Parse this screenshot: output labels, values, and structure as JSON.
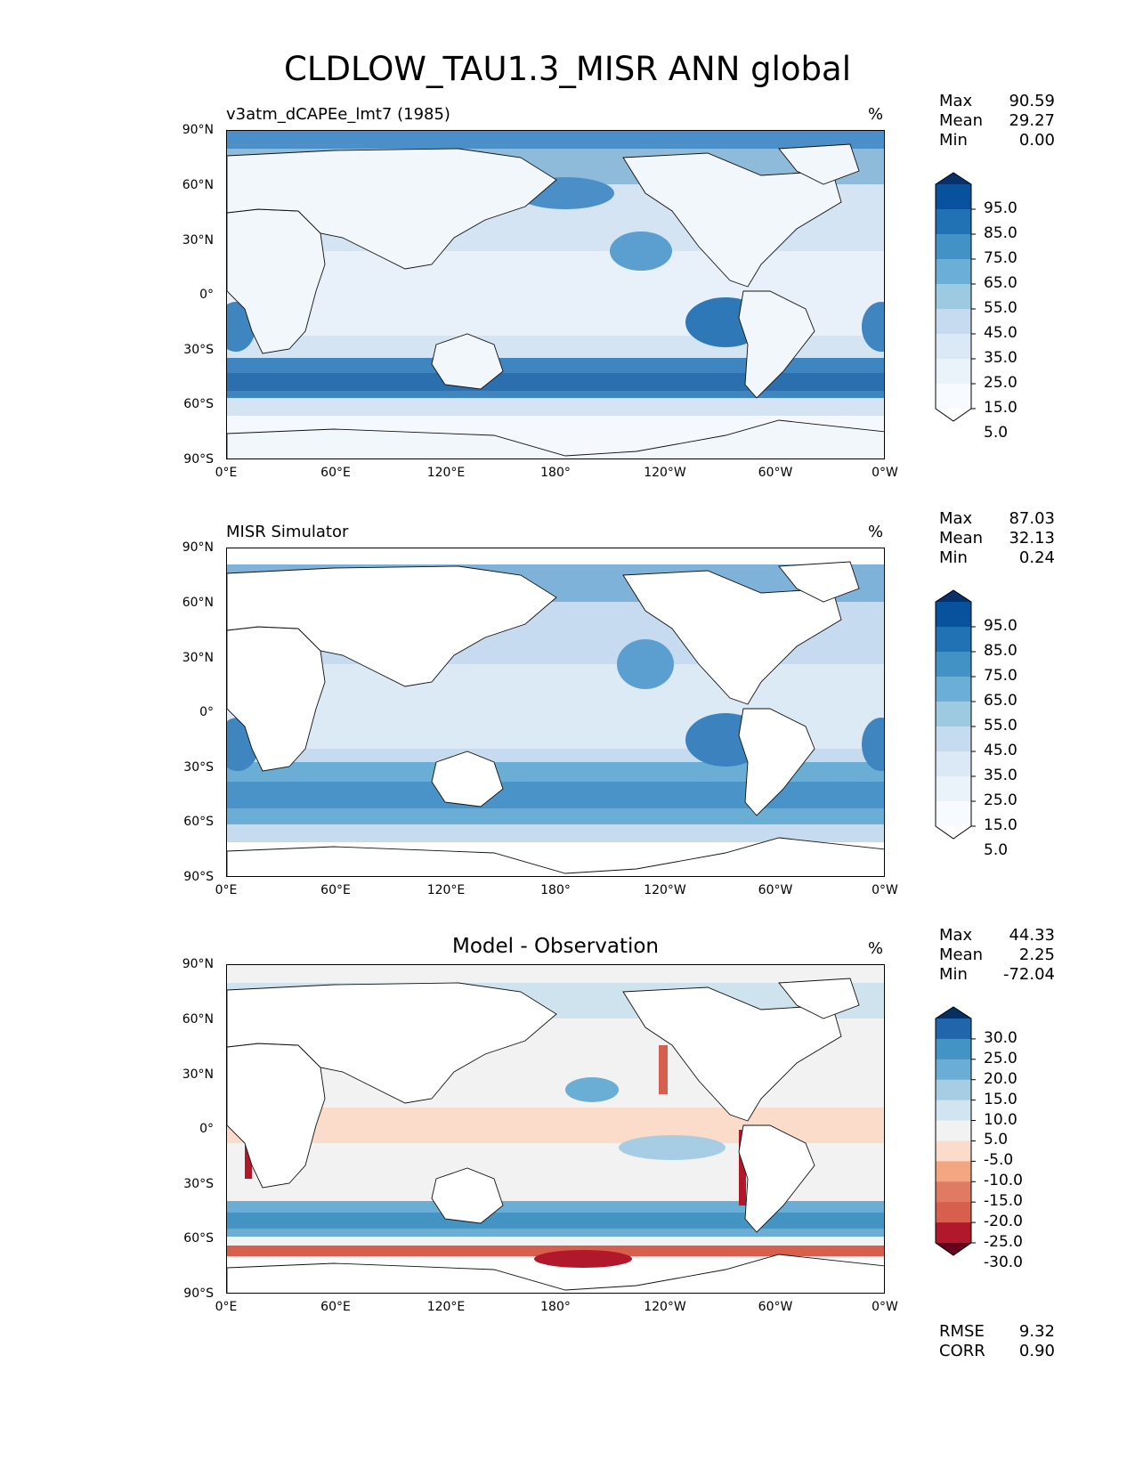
{
  "title": "CLDLOW_TAU1.3_MISR ANN global",
  "chart_data": [
    {
      "type": "heatmap",
      "title": "v3atm_dCAPEe_lmt7 (1985)",
      "units": "%",
      "stats": [
        {
          "label": "Max",
          "value": "90.59"
        },
        {
          "label": "Mean",
          "value": "29.27"
        },
        {
          "label": "Min",
          "value": "0.00"
        }
      ],
      "xticks": [
        "0°E",
        "60°E",
        "120°E",
        "180°",
        "120°W",
        "60°W",
        "0°W"
      ],
      "yticks": [
        "90°N",
        "60°N",
        "30°N",
        "0°",
        "30°S",
        "60°S",
        "90°S"
      ],
      "xlim": [
        0,
        360
      ],
      "ylim": [
        -90,
        90
      ],
      "colorbar": {
        "levels": [
          "95.0",
          "85.0",
          "75.0",
          "65.0",
          "55.0",
          "45.0",
          "35.0",
          "25.0",
          "15.0",
          "5.0"
        ],
        "colors": [
          "#08306b",
          "#08519c",
          "#2171b5",
          "#4292c6",
          "#6baed6",
          "#9ecae1",
          "#c6dbef",
          "#dbe9f6",
          "#eaf2fa",
          "#f7fbff",
          "#ffffff"
        ]
      }
    },
    {
      "type": "heatmap",
      "title": "MISR Simulator",
      "units": "%",
      "stats": [
        {
          "label": "Max",
          "value": "87.03"
        },
        {
          "label": "Mean",
          "value": "32.13"
        },
        {
          "label": "Min",
          "value": "0.24"
        }
      ],
      "xticks": [
        "0°E",
        "60°E",
        "120°E",
        "180°",
        "120°W",
        "60°W",
        "0°W"
      ],
      "yticks": [
        "90°N",
        "60°N",
        "30°N",
        "0°",
        "30°S",
        "60°S",
        "90°S"
      ],
      "xlim": [
        0,
        360
      ],
      "ylim": [
        -90,
        90
      ],
      "colorbar": {
        "levels": [
          "95.0",
          "85.0",
          "75.0",
          "65.0",
          "55.0",
          "45.0",
          "35.0",
          "25.0",
          "15.0",
          "5.0"
        ],
        "colors": [
          "#08306b",
          "#08519c",
          "#2171b5",
          "#4292c6",
          "#6baed6",
          "#9ecae1",
          "#c6dbef",
          "#dbe9f6",
          "#eaf2fa",
          "#f7fbff",
          "#ffffff"
        ]
      }
    },
    {
      "type": "heatmap",
      "title": "Model - Observation",
      "units": "%",
      "stats": [
        {
          "label": "Max",
          "value": "44.33"
        },
        {
          "label": "Mean",
          "value": "2.25"
        },
        {
          "label": "Min",
          "value": "-72.04"
        }
      ],
      "metrics": [
        {
          "label": "RMSE",
          "value": "9.32"
        },
        {
          "label": "CORR",
          "value": "0.90"
        }
      ],
      "xticks": [
        "0°E",
        "60°E",
        "120°E",
        "180°",
        "120°W",
        "60°W",
        "0°W"
      ],
      "yticks": [
        "90°N",
        "60°N",
        "30°N",
        "0°",
        "30°S",
        "60°S",
        "90°S"
      ],
      "xlim": [
        0,
        360
      ],
      "ylim": [
        -90,
        90
      ],
      "colorbar": {
        "levels": [
          "30.0",
          "25.0",
          "20.0",
          "15.0",
          "10.0",
          "5.0",
          "-5.0",
          "-10.0",
          "-15.0",
          "-20.0",
          "-25.0",
          "-30.0"
        ],
        "colors": [
          "#053061",
          "#2166ac",
          "#4393c3",
          "#6aaed6",
          "#a6cde3",
          "#d1e5f0",
          "#f2f2f2",
          "#fbdccb",
          "#f4a582",
          "#e07a62",
          "#d6604d",
          "#b2182b",
          "#67001f"
        ]
      }
    }
  ]
}
